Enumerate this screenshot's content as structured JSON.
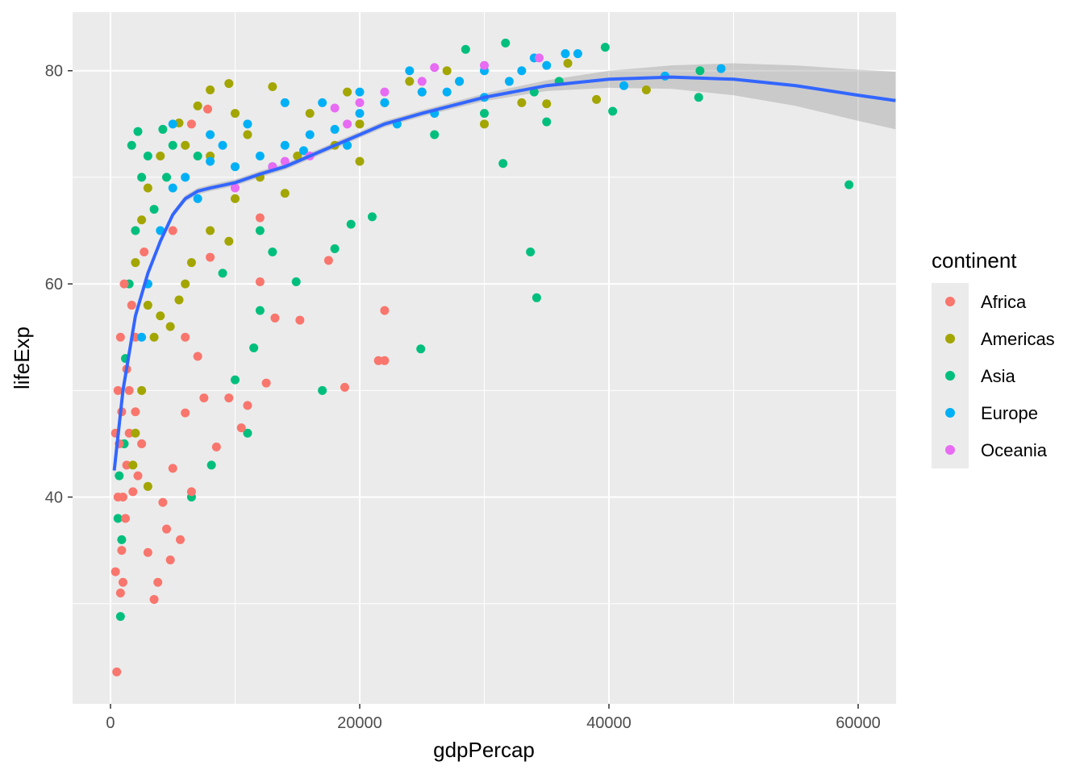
{
  "chart_data": {
    "type": "scatter",
    "title": "",
    "xlabel": "gdpPercap",
    "ylabel": "lifeExp",
    "xlim": [
      -3042,
      63042
    ],
    "ylim": [
      20.6,
      85.5
    ],
    "xticks": [
      0,
      20000,
      40000,
      60000
    ],
    "xtick_labels": [
      "0",
      "20000",
      "40000",
      "60000"
    ],
    "yticks": [
      40,
      60,
      80
    ],
    "ytick_labels": [
      "40",
      "60",
      "80"
    ],
    "grid": true,
    "legend": {
      "title": "continent",
      "placement": "right",
      "entries": [
        "Africa",
        "Americas",
        "Asia",
        "Europe",
        "Oceania"
      ],
      "colors": [
        "#F8766D",
        "#A3A500",
        "#00BF7D",
        "#00B0F6",
        "#E76BF3"
      ]
    },
    "note": "representative sample of points (x=gdpPercap, y=lifeExp, c=continent index)",
    "points": [
      [
        59265,
        69.3,
        2
      ],
      [
        47307,
        80,
        2
      ],
      [
        47200,
        77.5,
        2
      ],
      [
        40300,
        76.2,
        2
      ],
      [
        33700,
        63,
        2
      ],
      [
        34200,
        58.7,
        2
      ],
      [
        24900,
        53.9,
        2
      ],
      [
        17000,
        50,
        2
      ],
      [
        31500,
        71.3,
        2
      ],
      [
        35000,
        75.2,
        2
      ],
      [
        21000,
        66.3,
        2
      ],
      [
        19300,
        65.6,
        2
      ],
      [
        18000,
        63.3,
        2
      ],
      [
        12000,
        57.5,
        2
      ],
      [
        14900,
        60.2,
        2
      ],
      [
        10000,
        51,
        2
      ],
      [
        8100,
        43,
        2
      ],
      [
        6500,
        40,
        2
      ],
      [
        800,
        28.8,
        2
      ],
      [
        900,
        36,
        2
      ],
      [
        1100,
        45,
        2
      ],
      [
        1500,
        60,
        2
      ],
      [
        2000,
        65,
        2
      ],
      [
        2500,
        70,
        2
      ],
      [
        3000,
        72,
        2
      ],
      [
        5000,
        73,
        2
      ],
      [
        11000,
        46,
        2
      ],
      [
        11500,
        54,
        2
      ],
      [
        13000,
        63,
        2
      ],
      [
        28500,
        82,
        2
      ],
      [
        31700,
        82.6,
        2
      ],
      [
        39700,
        82.2,
        2
      ],
      [
        600,
        38,
        2
      ],
      [
        700,
        42,
        2
      ],
      [
        1200,
        53,
        2
      ],
      [
        3500,
        67,
        2
      ],
      [
        4500,
        70,
        2
      ],
      [
        7000,
        72,
        2
      ],
      [
        9000,
        61,
        2
      ],
      [
        12000,
        65,
        2
      ],
      [
        26000,
        74,
        2
      ],
      [
        30000,
        76,
        2
      ],
      [
        34000,
        78,
        2
      ],
      [
        36000,
        79,
        2
      ],
      [
        2200,
        74.3,
        2
      ],
      [
        1700,
        73,
        2
      ],
      [
        4200,
        74.5,
        2
      ],
      [
        500,
        23.6,
        0
      ],
      [
        1000,
        32,
        0
      ],
      [
        800,
        31,
        0
      ],
      [
        1200,
        38,
        0
      ],
      [
        3500,
        30.4,
        0
      ],
      [
        4800,
        34.1,
        0
      ],
      [
        5600,
        36,
        0
      ],
      [
        6500,
        40.5,
        0
      ],
      [
        3000,
        34.8,
        0
      ],
      [
        13200,
        56.8,
        0
      ],
      [
        15200,
        56.6,
        0
      ],
      [
        12500,
        50.7,
        0
      ],
      [
        11000,
        48.6,
        0
      ],
      [
        10500,
        46.5,
        0
      ],
      [
        21500,
        52.8,
        0
      ],
      [
        22000,
        52.8,
        0
      ],
      [
        22000,
        57.5,
        0
      ],
      [
        18800,
        50.3,
        0
      ],
      [
        17500,
        62.2,
        0
      ],
      [
        12000,
        60.2,
        0
      ],
      [
        12000,
        66.2,
        0
      ],
      [
        8000,
        62.5,
        0
      ],
      [
        8500,
        44.7,
        0
      ],
      [
        7500,
        49.3,
        0
      ],
      [
        9500,
        49.3,
        0
      ],
      [
        7000,
        53.2,
        0
      ],
      [
        6000,
        47.9,
        0
      ],
      [
        5000,
        42.7,
        0
      ],
      [
        4500,
        37,
        0
      ],
      [
        4200,
        39.5,
        0
      ],
      [
        2500,
        45,
        0
      ],
      [
        1500,
        50,
        0
      ],
      [
        2000,
        55,
        0
      ],
      [
        600,
        40,
        0
      ],
      [
        700,
        45,
        0
      ],
      [
        900,
        48,
        0
      ],
      [
        1300,
        52,
        0
      ],
      [
        1700,
        58,
        0
      ],
      [
        3000,
        60,
        0
      ],
      [
        5000,
        65,
        0
      ],
      [
        7800,
        76.4,
        0
      ],
      [
        6500,
        75,
        0
      ],
      [
        2200,
        42,
        0
      ],
      [
        400,
        33,
        0
      ],
      [
        1800,
        40.5,
        0
      ],
      [
        3800,
        32,
        0
      ],
      [
        900,
        35,
        0
      ],
      [
        1000,
        40,
        0
      ],
      [
        1500,
        46,
        0
      ],
      [
        600,
        50,
        0
      ],
      [
        800,
        55,
        0
      ],
      [
        1100,
        60,
        0
      ],
      [
        2700,
        63,
        0
      ],
      [
        6000,
        55,
        0
      ],
      [
        400,
        46,
        0
      ],
      [
        1300,
        43,
        0
      ],
      [
        2000,
        48,
        0
      ],
      [
        9500,
        78.8,
        1
      ],
      [
        8000,
        78.2,
        1
      ],
      [
        13000,
        78.5,
        1
      ],
      [
        10000,
        76,
        1
      ],
      [
        7000,
        76.7,
        1
      ],
      [
        5500,
        75.1,
        1
      ],
      [
        6000,
        73,
        1
      ],
      [
        4000,
        72,
        1
      ],
      [
        3000,
        69,
        1
      ],
      [
        2500,
        66,
        1
      ],
      [
        2000,
        62,
        1
      ],
      [
        3000,
        58,
        1
      ],
      [
        3500,
        55,
        1
      ],
      [
        2500,
        50,
        1
      ],
      [
        2000,
        46,
        1
      ],
      [
        1800,
        43,
        1
      ],
      [
        3000,
        41,
        1
      ],
      [
        4000,
        57,
        1
      ],
      [
        6000,
        60,
        1
      ],
      [
        8000,
        65,
        1
      ],
      [
        10000,
        68,
        1
      ],
      [
        12000,
        70,
        1
      ],
      [
        15000,
        72,
        1
      ],
      [
        18000,
        73,
        1
      ],
      [
        20000,
        75,
        1
      ],
      [
        22000,
        77,
        1
      ],
      [
        25000,
        78,
        1
      ],
      [
        28000,
        79,
        1
      ],
      [
        30000,
        75,
        1
      ],
      [
        33000,
        77,
        1
      ],
      [
        35000,
        76.9,
        1
      ],
      [
        36700,
        80.7,
        1
      ],
      [
        39000,
        77.3,
        1
      ],
      [
        43000,
        78.2,
        1
      ],
      [
        20000,
        71.5,
        1
      ],
      [
        14000,
        68.5,
        1
      ],
      [
        9500,
        64,
        1
      ],
      [
        6500,
        62,
        1
      ],
      [
        5500,
        58.5,
        1
      ],
      [
        4800,
        56,
        1
      ],
      [
        8000,
        72,
        1
      ],
      [
        11000,
        74,
        1
      ],
      [
        16000,
        76,
        1
      ],
      [
        19000,
        78,
        1
      ],
      [
        24000,
        79,
        1
      ],
      [
        27000,
        80,
        1
      ],
      [
        37500,
        81.6,
        3
      ],
      [
        36500,
        81.6,
        3
      ],
      [
        49000,
        80.2,
        3
      ],
      [
        44500,
        79.5,
        3
      ],
      [
        41200,
        78.6,
        3
      ],
      [
        30000,
        80,
        3
      ],
      [
        33000,
        80,
        3
      ],
      [
        34000,
        81.2,
        3
      ],
      [
        28000,
        79,
        3
      ],
      [
        25000,
        78,
        3
      ],
      [
        22000,
        77,
        3
      ],
      [
        20000,
        76,
        3
      ],
      [
        18000,
        74.5,
        3
      ],
      [
        16000,
        74,
        3
      ],
      [
        14000,
        73,
        3
      ],
      [
        12000,
        72,
        3
      ],
      [
        10000,
        71,
        3
      ],
      [
        8000,
        71.5,
        3
      ],
      [
        6000,
        70,
        3
      ],
      [
        5000,
        69,
        3
      ],
      [
        4000,
        65,
        3
      ],
      [
        3000,
        60,
        3
      ],
      [
        2500,
        55,
        3
      ],
      [
        5000,
        75,
        3
      ],
      [
        8000,
        74,
        3
      ],
      [
        11000,
        75,
        3
      ],
      [
        14000,
        77,
        3
      ],
      [
        17000,
        77,
        3
      ],
      [
        20000,
        78,
        3
      ],
      [
        24000,
        80,
        3
      ],
      [
        27000,
        78,
        3
      ],
      [
        30000,
        77.5,
        3
      ],
      [
        32000,
        79,
        3
      ],
      [
        35000,
        80.5,
        3
      ],
      [
        7000,
        68,
        3
      ],
      [
        9000,
        73,
        3
      ],
      [
        13000,
        71,
        3
      ],
      [
        15500,
        72.5,
        3
      ],
      [
        19000,
        73,
        3
      ],
      [
        23000,
        75,
        3
      ],
      [
        26000,
        76,
        3
      ],
      [
        10000,
        69,
        4
      ],
      [
        13000,
        71,
        4
      ],
      [
        16000,
        72,
        4
      ],
      [
        19000,
        75,
        4
      ],
      [
        20000,
        77,
        4
      ],
      [
        22000,
        78,
        4
      ],
      [
        25000,
        79,
        4
      ],
      [
        26000,
        80.3,
        4
      ],
      [
        30000,
        80.5,
        4
      ],
      [
        34400,
        81.2,
        4
      ],
      [
        18000,
        76.5,
        4
      ],
      [
        14000,
        71.5,
        4
      ]
    ],
    "smooth": {
      "method": "loess",
      "color": "#3366FF",
      "x": [
        300,
        1000,
        2000,
        3000,
        4000,
        5000,
        6000,
        7000,
        8000,
        10000,
        12000,
        14000,
        16000,
        18000,
        20000,
        22000,
        25000,
        30000,
        35000,
        40000,
        45000,
        50000,
        55000,
        60000,
        63000
      ],
      "y": [
        42.5,
        50,
        57,
        61,
        64,
        66.5,
        68,
        68.7,
        69,
        69.5,
        70.3,
        71,
        72,
        73,
        74,
        75,
        76,
        77.5,
        78.6,
        79.2,
        79.4,
        79.2,
        78.6,
        77.7,
        77.2
      ],
      "se": [
        0.6,
        0.3,
        0.3,
        0.3,
        0.3,
        0.3,
        0.3,
        0.3,
        0.3,
        0.3,
        0.3,
        0.3,
        0.3,
        0.3,
        0.3,
        0.3,
        0.3,
        0.35,
        0.5,
        0.8,
        1.1,
        1.5,
        1.9,
        2.4,
        2.7
      ]
    }
  }
}
